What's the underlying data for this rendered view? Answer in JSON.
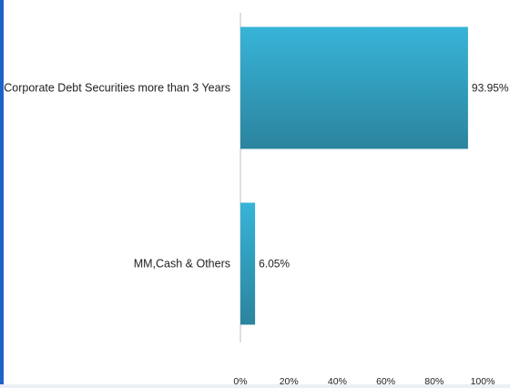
{
  "chart_data": {
    "type": "bar",
    "orientation": "horizontal",
    "categories": [
      "Corporate Debt Securities more than 3 Years",
      "MM,Cash & Others"
    ],
    "values": [
      93.95,
      6.05
    ],
    "data_labels": [
      "93.95%",
      "6.05%"
    ],
    "title": "",
    "xlabel": "",
    "ylabel": "",
    "xlim": [
      0,
      100
    ],
    "x_ticks": [
      "0%",
      "20%",
      "40%",
      "60%",
      "80%",
      "100%"
    ],
    "grid": false,
    "legend": "none",
    "colors": {
      "bar_top": "#37b4d8",
      "bar_bottom": "#2b849e",
      "axis": "#bfbfbf"
    }
  }
}
